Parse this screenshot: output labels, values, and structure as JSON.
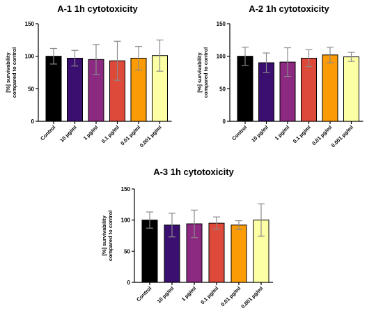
{
  "colors": {
    "bars": [
      "#000000",
      "#3b0f70",
      "#8c2981",
      "#de4a3a",
      "#fb9b06",
      "#fcffa4"
    ],
    "error_bar": "#8a8a8a",
    "axis": "#000000"
  },
  "chart_data": [
    {
      "type": "bar",
      "title": "A-1 1h cytotoxicity",
      "ylabel": "[%] survivability compared to control",
      "ylabel_lines": [
        "[%] survivability",
        "compared to control"
      ],
      "xlabel": "",
      "ylim": [
        0,
        150
      ],
      "yticks": [
        0,
        50,
        100,
        150
      ],
      "categories": [
        "Control",
        "10 µg/ml",
        "1 µg/ml",
        "0.1 µg/ml",
        "0.01 µg/ml",
        "0.001 µg/ml"
      ],
      "values": [
        100,
        97,
        95,
        93,
        97,
        101
      ],
      "errors": [
        12,
        12,
        23,
        30,
        18,
        24
      ]
    },
    {
      "type": "bar",
      "title": "A-2 1h cytotoxicity",
      "ylabel": "[%] survivability compared to control",
      "ylabel_lines": [
        "[%] survivability",
        "compared to control"
      ],
      "xlabel": "",
      "ylim": [
        0,
        150
      ],
      "yticks": [
        0,
        50,
        100,
        150
      ],
      "categories": [
        "Control",
        "10 µg/ml",
        "1 µg/ml",
        "0.1 µg/ml",
        "0.01 µg/ml",
        "0.001 µg/ml"
      ],
      "values": [
        100,
        90,
        91,
        97,
        102,
        99
      ],
      "errors": [
        14,
        15,
        22,
        13,
        12,
        7
      ]
    },
    {
      "type": "bar",
      "title": "A-3 1h cytotoxicity",
      "ylabel": "[%] survivability compared to control",
      "ylabel_lines": [
        "[%] survivability",
        "compared to control"
      ],
      "xlabel": "",
      "ylim": [
        0,
        150
      ],
      "yticks": [
        0,
        50,
        100,
        150
      ],
      "categories": [
        "Control",
        "10 µg/ml",
        "1 µg/ml",
        "0.1 µg/ml",
        "0.01 µg/ml",
        "0.001 µg/ml"
      ],
      "values": [
        100,
        92,
        94,
        95,
        92,
        100
      ],
      "errors": [
        13,
        19,
        22,
        10,
        7,
        26
      ]
    }
  ]
}
